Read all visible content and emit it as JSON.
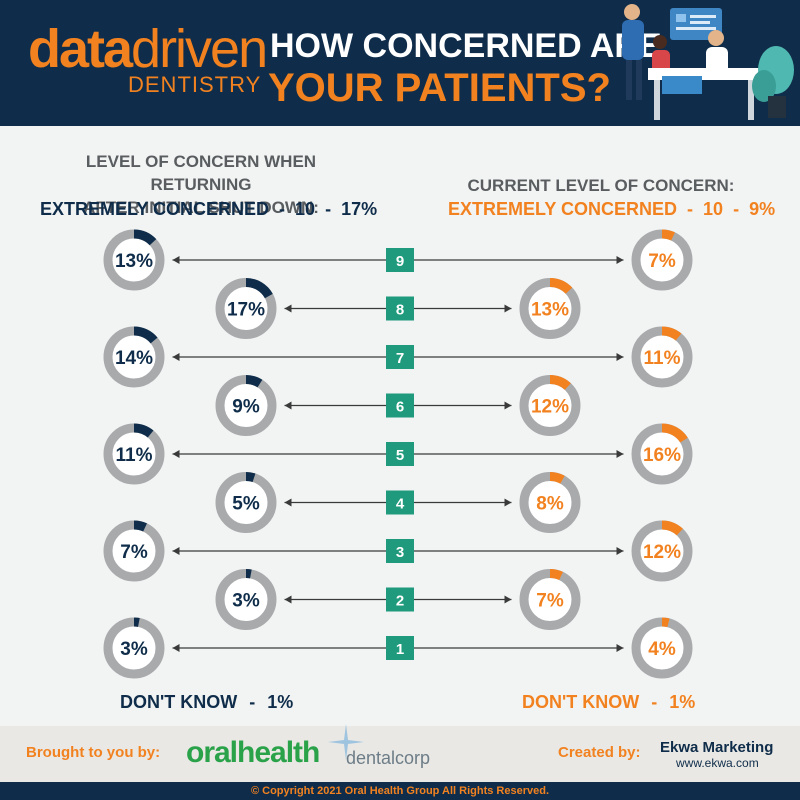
{
  "header": {
    "logo_data": "data",
    "logo_driven": "driven",
    "logo_sub": "DENTISTRY",
    "title_line1": "HOW CONCERNED ARE",
    "title_line2": "YOUR PATIENTS?"
  },
  "left_heading": [
    "LEVEL OF CONCERN WHEN RETURNING",
    "AFTER INITIAL SHUT DOWN:"
  ],
  "right_heading": "CURRENT LEVEL OF CONCERN:",
  "left_sub": {
    "label": "EXTREMELY CONCERNED",
    "dash": "-",
    "level": "10",
    "value": "17%"
  },
  "right_sub": {
    "label": "EXTREMELY CONCERNED",
    "dash": "-",
    "level": "10",
    "value": "9%"
  },
  "left_dont_know": {
    "label": "DON'T KNOW",
    "dash": "-",
    "value": "1%"
  },
  "right_dont_know": {
    "label": "DON'T KNOW",
    "dash": "-",
    "value": "1%"
  },
  "colors": {
    "navy": "#0f2d4a",
    "orange": "#f28220",
    "ring_gray": "#a8aaac",
    "badge_teal": "#1f9a7d"
  },
  "chart_data": {
    "type": "donut-comparison",
    "levels": [
      9,
      8,
      7,
      6,
      5,
      4,
      3,
      2,
      1
    ],
    "series": [
      {
        "name": "LEVEL OF CONCERN WHEN RETURNING AFTER INITIAL SHUT DOWN:",
        "values": [
          13,
          17,
          14,
          9,
          11,
          5,
          7,
          3,
          3
        ],
        "labels": [
          "13%",
          "17%",
          "14%",
          "9%",
          "11%",
          "5%",
          "7%",
          "3%",
          "3%"
        ]
      },
      {
        "name": "CURRENT LEVEL OF CONCERN:",
        "values": [
          7,
          13,
          11,
          12,
          16,
          8,
          12,
          7,
          4
        ],
        "labels": [
          "7%",
          "13%",
          "11%",
          "12%",
          "16%",
          "8%",
          "12%",
          "7%",
          "4%"
        ]
      }
    ]
  },
  "footer": {
    "brought_label": "Brought to you by:",
    "oralhealth": "oralhealth",
    "dentalcorp": "dentalcorp",
    "created_label": "Created by:",
    "ekwa": "Ekwa Marketing",
    "ekwa_url": "www.ekwa.com",
    "copyright": "© Copyright 2021 Oral Health Group All Rights Reserved."
  }
}
